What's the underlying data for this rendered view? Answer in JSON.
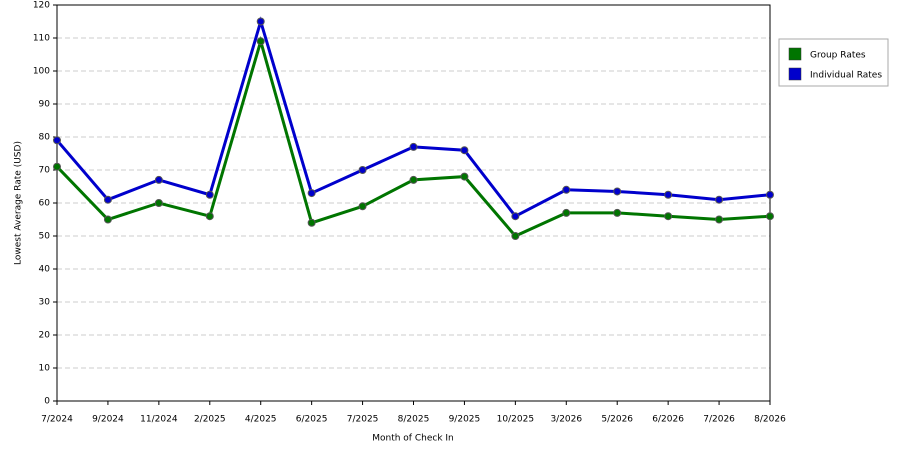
{
  "chart_data": {
    "type": "line",
    "x_label": "Month of Check In",
    "y_label": "Lowest Average Rate (USD)",
    "categories": [
      "7/2024",
      "9/2024",
      "11/2024",
      "2/2025",
      "4/2025",
      "6/2025",
      "7/2025",
      "8/2025",
      "9/2025",
      "10/2025",
      "3/2026",
      "5/2026",
      "6/2026",
      "7/2026",
      "8/2026"
    ],
    "series": [
      {
        "name": "Group Rates",
        "color": "#007500",
        "values": [
          71,
          55,
          60,
          56,
          109,
          54,
          59,
          67,
          68,
          50,
          57,
          57,
          56,
          55,
          56
        ]
      },
      {
        "name": "Individual Rates",
        "color": "#0000cc",
        "values": [
          79,
          61,
          67,
          62.5,
          115,
          63,
          70,
          77,
          76,
          56,
          64,
          63.5,
          62.5,
          61,
          62.5
        ]
      }
    ],
    "ylim": [
      0,
      120
    ],
    "yticks": [
      0,
      10,
      20,
      30,
      40,
      50,
      60,
      70,
      80,
      90,
      100,
      110,
      120
    ],
    "grid": true,
    "legend": "right"
  }
}
